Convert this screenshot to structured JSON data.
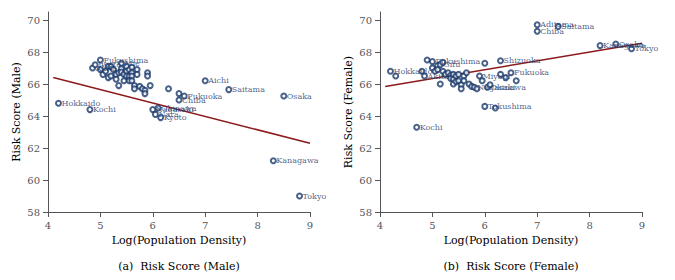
{
  "chart_data": [
    {
      "type": "scatter",
      "title": "(a)  Risk Score (Male)",
      "xlabel": "Log(Population Density)",
      "ylabel": "Risk Score (Male)",
      "xlim": [
        4.0,
        9.0
      ],
      "ylim": [
        58.0,
        70.5
      ],
      "xticks": [
        4,
        5,
        6,
        7,
        8,
        9
      ],
      "yticks": [
        58,
        60,
        62,
        64,
        66,
        68,
        70
      ],
      "grid": false,
      "series": [
        {
          "type": "scatter",
          "color": "#1a3a6b",
          "marker": "emptyCircle",
          "x": [
            4.2,
            4.8,
            4.85,
            4.9,
            5.0,
            5.0,
            5.05,
            5.1,
            5.15,
            5.15,
            5.2,
            5.2,
            5.25,
            5.3,
            5.3,
            5.35,
            5.35,
            5.4,
            5.4,
            5.4,
            5.45,
            5.45,
            5.5,
            5.5,
            5.5,
            5.55,
            5.55,
            5.55,
            5.6,
            5.6,
            5.6,
            5.6,
            5.65,
            5.65,
            5.7,
            5.7,
            5.75,
            5.8,
            5.85,
            5.85,
            5.9,
            5.9,
            5.95,
            6.0,
            6.05,
            6.1,
            6.15,
            6.3,
            6.5,
            6.5,
            6.6,
            7.0,
            7.45,
            8.5,
            8.3,
            8.8
          ],
          "values": [
            64.8,
            64.4,
            67.0,
            67.2,
            66.9,
            67.5,
            66.6,
            66.8,
            67.1,
            66.4,
            67.1,
            66.5,
            66.9,
            66.6,
            66.3,
            65.9,
            66.7,
            67.3,
            66.95,
            66.75,
            66.6,
            66.2,
            67.1,
            66.8,
            66.5,
            66.9,
            66.5,
            66.2,
            67.05,
            66.7,
            66.5,
            66.2,
            65.9,
            65.7,
            66.9,
            66.6,
            65.85,
            65.7,
            65.6,
            65.4,
            66.7,
            66.5,
            65.9,
            64.4,
            64.1,
            64.5,
            63.9,
            65.7,
            65.4,
            65.0,
            65.25,
            66.2,
            65.65,
            65.25,
            61.2,
            59.0
          ]
        },
        {
          "type": "line",
          "color": "#8b1a1a",
          "line_style": "solid",
          "x": [
            4.1,
            9.0
          ],
          "values": [
            66.4,
            62.3
          ]
        }
      ],
      "annotations": [
        {
          "x": 4.2,
          "y": 64.8,
          "text": "Hokkaido",
          "color": "#1a3a6b"
        },
        {
          "x": 4.8,
          "y": 64.4,
          "text": "Kochi",
          "color": "#1a3a6b"
        },
        {
          "x": 4.85,
          "y": 67.0,
          "text": "Akita",
          "color": "#1a3a6b"
        },
        {
          "x": 4.9,
          "y": 67.2,
          "text": "Iwate",
          "color": "#1a3a6b"
        },
        {
          "x": 5.0,
          "y": 67.5,
          "text": "Fukushima",
          "color": "#1a3a6b"
        },
        {
          "x": 5.4,
          "y": 67.3,
          "text": "Mie",
          "color": "#1a3a6b"
        },
        {
          "x": 6.0,
          "y": 64.4,
          "text": "Nagasaki",
          "color": "#1a3a6b"
        },
        {
          "x": 6.05,
          "y": 64.1,
          "text": "Nara",
          "color": "#1a3a6b"
        },
        {
          "x": 6.1,
          "y": 64.5,
          "text": "Okinawa",
          "color": "#1a3a6b"
        },
        {
          "x": 6.15,
          "y": 63.9,
          "text": "Kyoto",
          "color": "#1a3a6b"
        },
        {
          "x": 6.6,
          "y": 65.25,
          "text": "Fukuoka",
          "color": "#1a3a6b"
        },
        {
          "x": 6.5,
          "y": 65.0,
          "text": "Chiba",
          "color": "#1a3a6b"
        },
        {
          "x": 7.0,
          "y": 66.2,
          "text": "Aichi",
          "color": "#1a3a6b"
        },
        {
          "x": 7.45,
          "y": 65.65,
          "text": "Saitama",
          "color": "#1a3a6b"
        },
        {
          "x": 8.5,
          "y": 65.25,
          "text": "Osaka",
          "color": "#1a3a6b"
        },
        {
          "x": 8.3,
          "y": 61.2,
          "text": "Kanagawa",
          "color": "#1a3a6b"
        },
        {
          "x": 8.8,
          "y": 59.0,
          "text": "Tokyo",
          "color": "#1a3a6b"
        }
      ]
    },
    {
      "type": "scatter",
      "title": "(b)  Risk Score (Female)",
      "xlabel": "Log(Population Density)",
      "ylabel": "Risk Score (Female)",
      "xlim": [
        4.0,
        9.0
      ],
      "ylim": [
        58.0,
        70.5
      ],
      "xticks": [
        4,
        5,
        6,
        7,
        8,
        9
      ],
      "yticks": [
        58,
        60,
        62,
        64,
        66,
        68,
        70
      ],
      "grid": false,
      "series": [
        {
          "type": "scatter",
          "color": "#1a3a6b",
          "marker": "emptyCircle",
          "x": [
            4.2,
            4.3,
            4.7,
            4.8,
            4.85,
            4.9,
            5.0,
            5.0,
            5.05,
            5.1,
            5.1,
            5.15,
            5.15,
            5.2,
            5.2,
            5.25,
            5.3,
            5.35,
            5.35,
            5.4,
            5.4,
            5.4,
            5.45,
            5.45,
            5.5,
            5.5,
            5.55,
            5.55,
            5.6,
            5.6,
            5.65,
            5.7,
            5.75,
            5.8,
            5.85,
            5.9,
            5.95,
            6.0,
            6.0,
            6.05,
            6.1,
            6.2,
            6.3,
            6.3,
            6.4,
            6.5,
            6.6,
            7.0,
            7.0,
            7.4,
            8.2,
            8.5,
            8.8
          ],
          "values": [
            66.8,
            66.5,
            63.3,
            66.8,
            66.5,
            67.5,
            67.4,
            67.0,
            66.8,
            67.15,
            66.9,
            67.2,
            66.0,
            67.35,
            66.8,
            66.6,
            66.7,
            66.55,
            66.35,
            66.6,
            66.3,
            66.0,
            66.5,
            66.15,
            66.6,
            66.2,
            65.95,
            65.7,
            66.5,
            66.2,
            66.7,
            66.0,
            65.85,
            65.8,
            65.7,
            66.5,
            66.2,
            64.6,
            67.3,
            65.8,
            65.95,
            64.5,
            67.45,
            66.6,
            66.4,
            66.7,
            66.2,
            69.7,
            69.3,
            69.6,
            68.4,
            68.5,
            68.2
          ]
        },
        {
          "type": "line",
          "color": "#8b1a1a",
          "line_style": "solid",
          "x": [
            4.1,
            9.0
          ],
          "values": [
            65.85,
            68.55
          ]
        }
      ],
      "annotations": [
        {
          "x": 4.2,
          "y": 66.8,
          "text": "Hokkaido",
          "color": "#1a3a6b"
        },
        {
          "x": 4.7,
          "y": 63.3,
          "text": "Kochi",
          "color": "#1a3a6b"
        },
        {
          "x": 4.85,
          "y": 66.5,
          "text": "Akita",
          "color": "#1a3a6b"
        },
        {
          "x": 5.15,
          "y": 67.2,
          "text": "Gifu",
          "color": "#1a3a6b"
        },
        {
          "x": 5.0,
          "y": 67.4,
          "text": "Fukushima",
          "color": "#1a3a6b"
        },
        {
          "x": 6.3,
          "y": 67.45,
          "text": "Shizuoka",
          "color": "#1a3a6b"
        },
        {
          "x": 6.0,
          "y": 64.6,
          "text": "Tokushima",
          "color": "#1a3a6b"
        },
        {
          "x": 6.05,
          "y": 65.8,
          "text": "Okinawa",
          "color": "#1a3a6b"
        },
        {
          "x": 6.5,
          "y": 66.7,
          "text": "Fukuoka",
          "color": "#1a3a6b"
        },
        {
          "x": 7.0,
          "y": 69.7,
          "text": "Aditama",
          "color": "#1a3a6b"
        },
        {
          "x": 7.0,
          "y": 69.3,
          "text": "Chiba",
          "color": "#1a3a6b"
        },
        {
          "x": 7.4,
          "y": 69.6,
          "text": "Saitama",
          "color": "#1a3a6b"
        },
        {
          "x": 8.2,
          "y": 68.4,
          "text": "Kanagawa",
          "color": "#1a3a6b"
        },
        {
          "x": 8.5,
          "y": 68.5,
          "text": "Osaka",
          "color": "#1a3a6b"
        },
        {
          "x": 8.8,
          "y": 68.2,
          "text": "Tokyo",
          "color": "#1a3a6b"
        },
        {
          "x": 5.9,
          "y": 66.5,
          "text": "Miyagi",
          "color": "#1a3a6b"
        },
        {
          "x": 5.8,
          "y": 65.8,
          "text": "Nagasaki",
          "color": "#1a3a6b"
        }
      ]
    }
  ]
}
